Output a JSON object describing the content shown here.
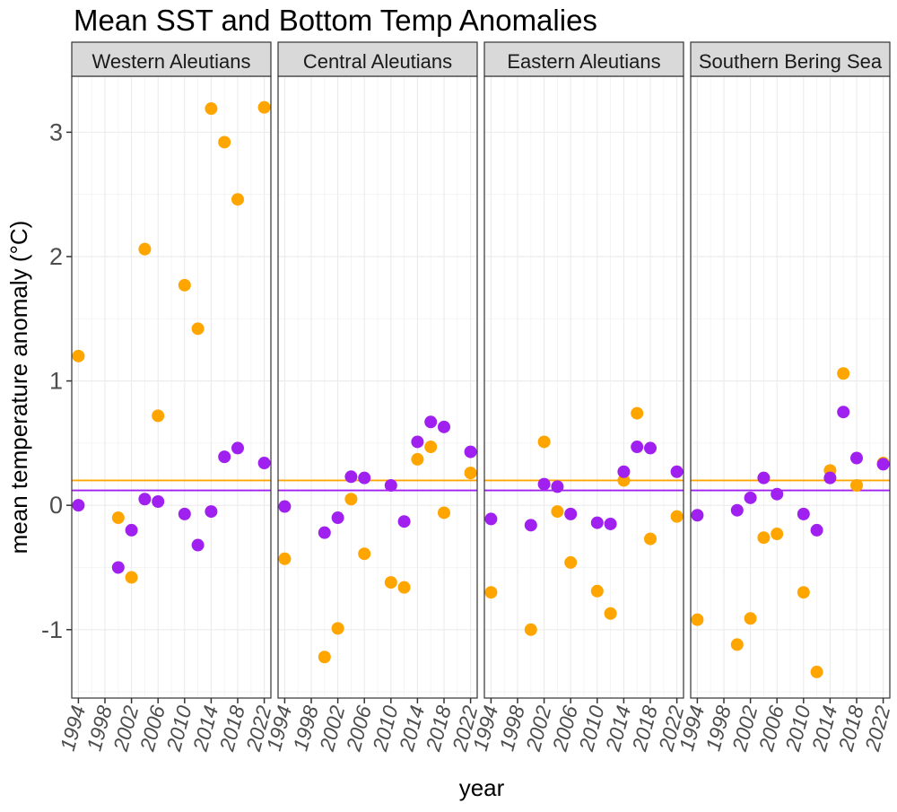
{
  "chart_data": {
    "type": "scatter",
    "title": "Mean SST and Bottom Temp Anomalies",
    "xlabel": "year",
    "ylabel": "mean temperature anomaly (°C)",
    "xlim": [
      1993,
      2023
    ],
    "ylim": [
      -1.55,
      3.45
    ],
    "yticks": [
      -1,
      0,
      1,
      2,
      3
    ],
    "xticks": [
      1994,
      1998,
      2002,
      2006,
      2010,
      2014,
      2018,
      2022
    ],
    "grid": true,
    "legend": "none",
    "series_colors": {
      "sst": "#FFA500",
      "bottom": "#A020F0"
    },
    "reference_lines": [
      {
        "series": "sst",
        "y": 0.2,
        "color": "#FFA500"
      },
      {
        "series": "bottom",
        "y": 0.12,
        "color": "#A020F0"
      }
    ],
    "panels": [
      {
        "label": "Western Aleutians",
        "series": [
          {
            "key": "sst",
            "points": [
              [
                1994,
                1.2
              ],
              [
                2000,
                -0.1
              ],
              [
                2002,
                -0.58
              ],
              [
                2004,
                2.06
              ],
              [
                2006,
                0.72
              ],
              [
                2010,
                1.77
              ],
              [
                2012,
                1.42
              ],
              [
                2014,
                3.19
              ],
              [
                2016,
                2.92
              ],
              [
                2018,
                2.46
              ],
              [
                2022,
                3.2
              ]
            ]
          },
          {
            "key": "bottom",
            "points": [
              [
                1994,
                0.0
              ],
              [
                2000,
                -0.5
              ],
              [
                2002,
                -0.2
              ],
              [
                2004,
                0.05
              ],
              [
                2006,
                0.03
              ],
              [
                2010,
                -0.07
              ],
              [
                2012,
                -0.32
              ],
              [
                2014,
                -0.05
              ],
              [
                2016,
                0.39
              ],
              [
                2018,
                0.46
              ],
              [
                2022,
                0.34
              ]
            ]
          }
        ]
      },
      {
        "label": "Central Aleutians",
        "series": [
          {
            "key": "sst",
            "points": [
              [
                1994,
                -0.43
              ],
              [
                2000,
                -1.22
              ],
              [
                2002,
                -0.99
              ],
              [
                2004,
                0.05
              ],
              [
                2006,
                -0.39
              ],
              [
                2010,
                -0.62
              ],
              [
                2012,
                -0.66
              ],
              [
                2014,
                0.37
              ],
              [
                2016,
                0.47
              ],
              [
                2018,
                -0.06
              ],
              [
                2022,
                0.26
              ]
            ]
          },
          {
            "key": "bottom",
            "points": [
              [
                1994,
                -0.01
              ],
              [
                2000,
                -0.22
              ],
              [
                2002,
                -0.1
              ],
              [
                2004,
                0.23
              ],
              [
                2006,
                0.22
              ],
              [
                2010,
                0.16
              ],
              [
                2012,
                -0.13
              ],
              [
                2014,
                0.51
              ],
              [
                2016,
                0.67
              ],
              [
                2018,
                0.63
              ],
              [
                2022,
                0.43
              ]
            ]
          }
        ]
      },
      {
        "label": "Eastern Aleutians",
        "series": [
          {
            "key": "sst",
            "points": [
              [
                1994,
                -0.7
              ],
              [
                2000,
                -1.0
              ],
              [
                2002,
                0.51
              ],
              [
                2004,
                -0.05
              ],
              [
                2006,
                -0.46
              ],
              [
                2010,
                -0.69
              ],
              [
                2012,
                -0.87
              ],
              [
                2014,
                0.2
              ],
              [
                2016,
                0.74
              ],
              [
                2018,
                -0.27
              ],
              [
                2022,
                -0.09
              ]
            ]
          },
          {
            "key": "bottom",
            "points": [
              [
                1994,
                -0.11
              ],
              [
                2000,
                -0.16
              ],
              [
                2002,
                0.17
              ],
              [
                2004,
                0.15
              ],
              [
                2006,
                -0.07
              ],
              [
                2010,
                -0.14
              ],
              [
                2012,
                -0.15
              ],
              [
                2014,
                0.27
              ],
              [
                2016,
                0.47
              ],
              [
                2018,
                0.46
              ],
              [
                2022,
                0.27
              ]
            ]
          }
        ]
      },
      {
        "label": "Southern Bering Sea",
        "series": [
          {
            "key": "sst",
            "points": [
              [
                1994,
                -0.92
              ],
              [
                2000,
                -1.12
              ],
              [
                2002,
                -0.91
              ],
              [
                2004,
                -0.26
              ],
              [
                2006,
                -0.23
              ],
              [
                2010,
                -0.7
              ],
              [
                2012,
                -1.34
              ],
              [
                2014,
                0.28
              ],
              [
                2016,
                1.06
              ],
              [
                2018,
                0.16
              ],
              [
                2022,
                0.34
              ]
            ]
          },
          {
            "key": "bottom",
            "points": [
              [
                1994,
                -0.08
              ],
              [
                2000,
                -0.04
              ],
              [
                2002,
                0.06
              ],
              [
                2004,
                0.22
              ],
              [
                2006,
                0.09
              ],
              [
                2010,
                -0.07
              ],
              [
                2012,
                -0.2
              ],
              [
                2014,
                0.22
              ],
              [
                2016,
                0.75
              ],
              [
                2018,
                0.38
              ],
              [
                2022,
                0.33
              ]
            ]
          }
        ]
      }
    ]
  }
}
